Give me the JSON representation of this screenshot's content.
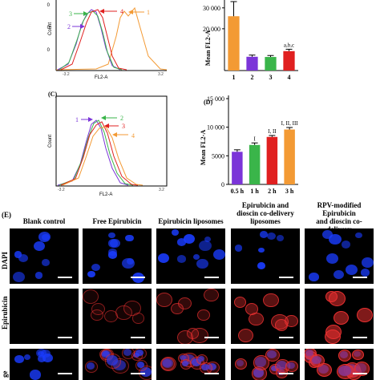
{
  "panel_labels": {
    "c": "(C)",
    "d": "(D)",
    "e": "(E)"
  },
  "colors": {
    "purple": "#7b35d8",
    "green": "#3ab54a",
    "red": "#e02020",
    "orange": "#f39a34",
    "bar_gray": "#444444",
    "dapi": "#1a3cff",
    "epirubicin": "#e83030"
  },
  "panel_a": {
    "ylabel": "Count",
    "xlabel": "FL2-A",
    "curve_labels": [
      "1",
      "2",
      "3",
      "4"
    ]
  },
  "panel_c": {
    "ylabel": "Count",
    "xlabel": "FL2-A",
    "curve_labels": [
      "1",
      "2",
      "3",
      "4"
    ]
  },
  "chart_data": [
    {
      "type": "bar",
      "ylabel": "Mean FL2-A",
      "categories": [
        "1",
        "2",
        "3",
        "4"
      ],
      "values": [
        26000,
        6600,
        6500,
        9300
      ],
      "errors": [
        7000,
        800,
        700,
        900
      ],
      "bar_colors": [
        "#f39a34",
        "#7b35d8",
        "#3ab54a",
        "#e02020"
      ],
      "yticks": [
        "20 000",
        "30 000"
      ],
      "ytick_values": [
        20000,
        30000
      ],
      "ylim": [
        0,
        33000
      ],
      "annotations": [
        {
          "category": "4",
          "text": "a,b,c"
        }
      ]
    },
    {
      "type": "bar",
      "ylabel": "Mean FL2-A",
      "categories": [
        "0.5 h",
        "1 h",
        "2 h",
        "3 h"
      ],
      "values": [
        5700,
        6900,
        8300,
        9600
      ],
      "errors": [
        350,
        350,
        250,
        350
      ],
      "bar_colors": [
        "#7b35d8",
        "#3ab54a",
        "#e02020",
        "#f39a34"
      ],
      "yticks": [
        "0",
        "5000",
        "10 000",
        "15 000"
      ],
      "ytick_values": [
        0,
        5000,
        10000,
        15000
      ],
      "ylim": [
        0,
        15000
      ],
      "annotations": [
        {
          "category": "1 h",
          "text": "I"
        },
        {
          "category": "2 h",
          "text": "I, II"
        },
        {
          "category": "3 h",
          "text": "I, II, III"
        }
      ]
    }
  ],
  "microscopy": {
    "columns": [
      "Blank control",
      "Free Epirubicin",
      "Epirubicin liposomes",
      "Epirubicin and\ndioscin co-delivery\nliposomes",
      "RPV-modified Epirubicin\nand dioscin co-delivery\nliposomes"
    ],
    "rows": [
      "DAPI",
      "Epirubicin",
      "Merge"
    ],
    "row_label_partial": [
      "DAPI",
      "Epirubicin",
      "ge"
    ]
  }
}
